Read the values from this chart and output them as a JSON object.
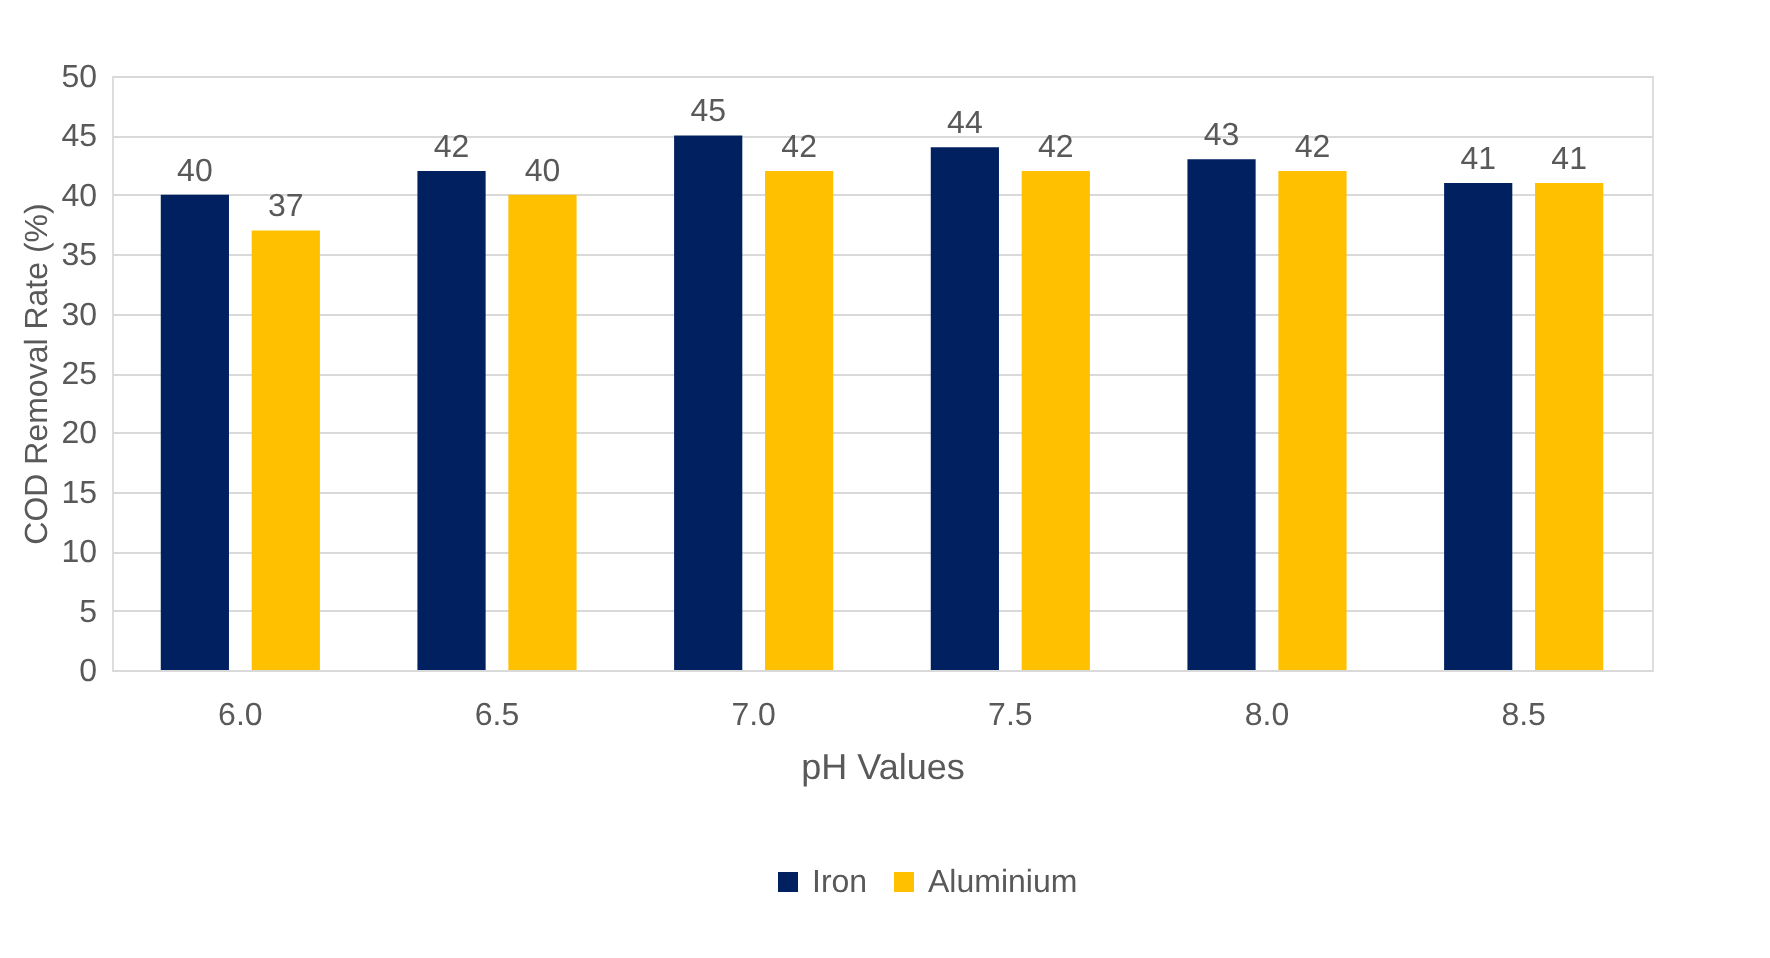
{
  "chart_data": {
    "type": "bar",
    "xlabel": "pH Values",
    "ylabel": "COD Removal Rate (%)",
    "categories": [
      "6.0",
      "6.5",
      "7.0",
      "7.5",
      "8.0",
      "8.5"
    ],
    "series": [
      {
        "name": "Iron",
        "color": "#002060",
        "values": [
          40,
          42,
          45,
          44,
          43,
          41
        ]
      },
      {
        "name": "Aluminium",
        "color": "#ffc000",
        "values": [
          37,
          40,
          42,
          42,
          42,
          41
        ]
      }
    ],
    "ylim": [
      0,
      50
    ],
    "yticks": [
      0,
      5,
      10,
      15,
      20,
      25,
      30,
      35,
      40,
      45,
      50
    ],
    "grid": "y",
    "legend": "bottom",
    "data_labels": true
  }
}
